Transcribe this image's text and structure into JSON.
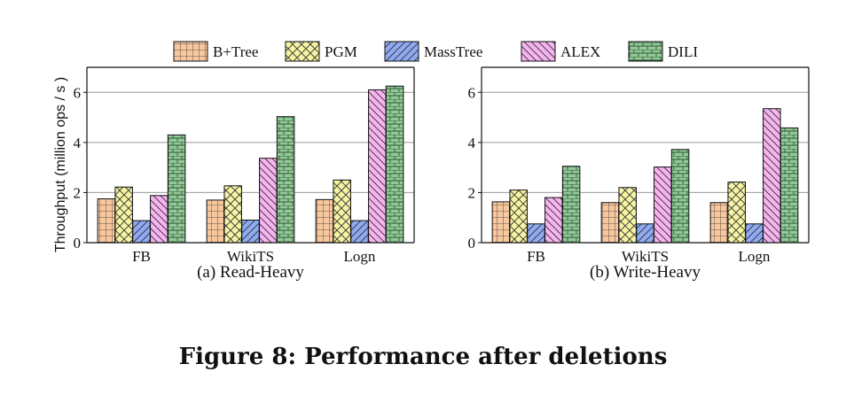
{
  "caption": "Figure 8: Performance after deletions",
  "legend": [
    {
      "name": "B+Tree",
      "color": "#f8c79e",
      "pattern": "grid"
    },
    {
      "name": "PGM",
      "color": "#f6f3a2",
      "pattern": "crosshatch"
    },
    {
      "name": "MassTree",
      "color": "#8eaaf2",
      "pattern": "diag-forward"
    },
    {
      "name": "ALEX",
      "color": "#f6b3f0",
      "pattern": "diag-back"
    },
    {
      "name": "DILI",
      "color": "#93c99a",
      "pattern": "brick"
    }
  ],
  "ylabel": "Throughput (million ops / s )",
  "chart_data": [
    {
      "type": "bar",
      "subtitle": "(a) Read-Heavy",
      "categories": [
        "FB",
        "WikiTS",
        "Logn"
      ],
      "ylim": [
        0,
        7
      ],
      "yticks": [
        0,
        2,
        4,
        6
      ],
      "grid": true,
      "legend_position": "top",
      "series": [
        {
          "name": "B+Tree",
          "values": [
            1.75,
            1.7,
            1.72
          ]
        },
        {
          "name": "PGM",
          "values": [
            2.22,
            2.27,
            2.5
          ]
        },
        {
          "name": "MassTree",
          "values": [
            0.88,
            0.9,
            0.88
          ]
        },
        {
          "name": "ALEX",
          "values": [
            1.88,
            3.37,
            6.1
          ]
        },
        {
          "name": "DILI",
          "values": [
            4.3,
            5.03,
            6.25
          ]
        }
      ]
    },
    {
      "type": "bar",
      "subtitle": "(b) Write-Heavy",
      "categories": [
        "FB",
        "WikiTS",
        "Logn"
      ],
      "ylim": [
        0,
        7
      ],
      "yticks": [
        0,
        2,
        4,
        6
      ],
      "grid": true,
      "legend_position": "top",
      "series": [
        {
          "name": "B+Tree",
          "values": [
            1.63,
            1.6,
            1.6
          ]
        },
        {
          "name": "PGM",
          "values": [
            2.1,
            2.2,
            2.42
          ]
        },
        {
          "name": "MassTree",
          "values": [
            0.75,
            0.75,
            0.75
          ]
        },
        {
          "name": "ALEX",
          "values": [
            1.8,
            3.02,
            5.35
          ]
        },
        {
          "name": "DILI",
          "values": [
            3.05,
            3.72,
            4.58
          ]
        }
      ]
    }
  ]
}
